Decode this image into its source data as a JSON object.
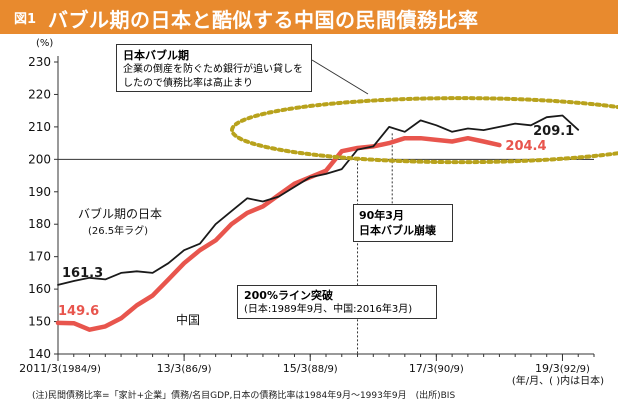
{
  "header": {
    "figure_no": "図1",
    "title": "バブル期の日本と酷似する中国の民間債務比率"
  },
  "annotations": {
    "bubble_head": "日本バブル期",
    "bubble_body": "企業の倒産を防ぐため銀行が追い貸しを\nしたので債務比率は高止まり",
    "crash_box": "90年3月\n日本バブル崩壊",
    "line200_head": "200%ライン突破",
    "line200_body": "(日本:1989年9月、中国:2016年3月)",
    "japan_label": "バブル期の日本",
    "japan_sublabel": "(26.5年ラグ)",
    "china_label": "中国"
  },
  "footnote": "(注)民間債務比率=「家計+企業」債務/名目GDP,日本の債務比率は1984年9月〜1993年9月　(出所)BIS",
  "chart_data": {
    "type": "line",
    "title": "バブル期の日本と酷似する中国の民間債務比率",
    "xlabel": "(年/月、( )内は日本)",
    "ylabel": "(%)",
    "ylim": [
      140,
      230
    ],
    "yticks": [
      140,
      150,
      160,
      170,
      180,
      190,
      200,
      210,
      220,
      230
    ],
    "xlim": [
      0,
      34
    ],
    "x_ticks": [
      {
        "x": 0,
        "label": "2011/3",
        "sub": "(1984/9)"
      },
      {
        "x": 8,
        "label": "13/3",
        "sub": "(86/9)"
      },
      {
        "x": 16,
        "label": "15/3",
        "sub": "(88/9)"
      },
      {
        "x": 24,
        "label": "17/3",
        "sub": "(90/9)"
      },
      {
        "x": 32,
        "label": "19/3",
        "sub": "(92/9)"
      }
    ],
    "reference_line": 200,
    "vline_x": 19,
    "grid": false,
    "series": [
      {
        "name": "バブル期の日本",
        "color": "#1a1a1a",
        "start_label": "161.3",
        "end_label": "209.1",
        "values": [
          161.3,
          162.5,
          163.5,
          163,
          165,
          165.5,
          165,
          168,
          172,
          174,
          180,
          184,
          188,
          187,
          188.5,
          191.5,
          194.5,
          195.5,
          197,
          203,
          204,
          210,
          208.5,
          212,
          210.5,
          208.5,
          209.5,
          209,
          210,
          211,
          210.5,
          213,
          213.5,
          209.1
        ]
      },
      {
        "name": "中国",
        "color": "#e8554d",
        "start_label": "149.6",
        "end_label": "204.4",
        "values": [
          149.6,
          149.5,
          147.5,
          148.5,
          151,
          155,
          158,
          163,
          168,
          172,
          175,
          180,
          183.5,
          185.5,
          189,
          192.5,
          194.5,
          196.5,
          202.5,
          203.5,
          204,
          205,
          206.5,
          206.5,
          206,
          205.5,
          206.5,
          205.5,
          204.4
        ]
      }
    ]
  }
}
